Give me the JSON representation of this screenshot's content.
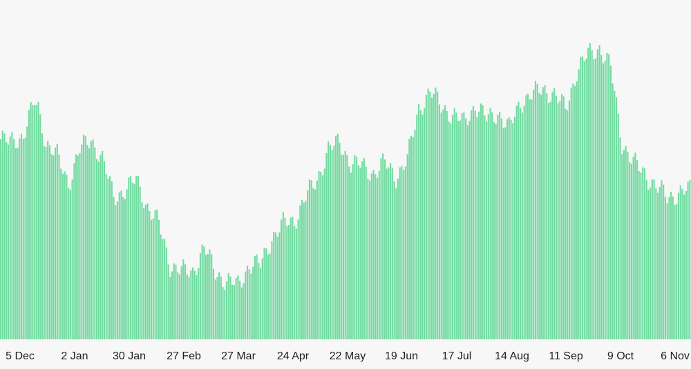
{
  "chart_data": {
    "type": "bar",
    "bar_color": "#72dba0",
    "background_color": "#f7f7f7",
    "title": "",
    "xlabel": "",
    "ylabel": "",
    "ylim": [
      0,
      100
    ],
    "grid": false,
    "legend": "none",
    "x_tick_labels": [
      "5 Dec",
      "2 Jan",
      "30 Jan",
      "27 Feb",
      "27 Mar",
      "24 Apr",
      "22 May",
      "19 Jun",
      "17 Jul",
      "14 Aug",
      "11 Sep",
      "9 Oct",
      "6 Nov"
    ],
    "anchors": [
      [
        0,
        59
      ],
      [
        4,
        58
      ],
      [
        12,
        60
      ],
      [
        18,
        70
      ],
      [
        20,
        68
      ],
      [
        24,
        58
      ],
      [
        30,
        54
      ],
      [
        36,
        46
      ],
      [
        42,
        56
      ],
      [
        48,
        59
      ],
      [
        54,
        53
      ],
      [
        60,
        42
      ],
      [
        66,
        44
      ],
      [
        72,
        47
      ],
      [
        78,
        39
      ],
      [
        84,
        34
      ],
      [
        90,
        22
      ],
      [
        96,
        20
      ],
      [
        102,
        20
      ],
      [
        108,
        27
      ],
      [
        114,
        20
      ],
      [
        120,
        17
      ],
      [
        126,
        16
      ],
      [
        132,
        22
      ],
      [
        138,
        22
      ],
      [
        144,
        30
      ],
      [
        150,
        34
      ],
      [
        156,
        35
      ],
      [
        162,
        42
      ],
      [
        168,
        47
      ],
      [
        174,
        56
      ],
      [
        180,
        58
      ],
      [
        186,
        52
      ],
      [
        192,
        51
      ],
      [
        198,
        49
      ],
      [
        204,
        52
      ],
      [
        210,
        48
      ],
      [
        216,
        53
      ],
      [
        222,
        68
      ],
      [
        228,
        73
      ],
      [
        234,
        69
      ],
      [
        240,
        66
      ],
      [
        246,
        64
      ],
      [
        252,
        69
      ],
      [
        258,
        65
      ],
      [
        264,
        67
      ],
      [
        270,
        62
      ],
      [
        276,
        70
      ],
      [
        282,
        72
      ],
      [
        288,
        74
      ],
      [
        294,
        72
      ],
      [
        300,
        68
      ],
      [
        306,
        79
      ],
      [
        312,
        84
      ],
      [
        318,
        86
      ],
      [
        324,
        80
      ],
      [
        330,
        58
      ],
      [
        336,
        52
      ],
      [
        342,
        49
      ],
      [
        348,
        45
      ],
      [
        354,
        42
      ],
      [
        360,
        43
      ],
      [
        366,
        44
      ]
    ],
    "values": []
  }
}
